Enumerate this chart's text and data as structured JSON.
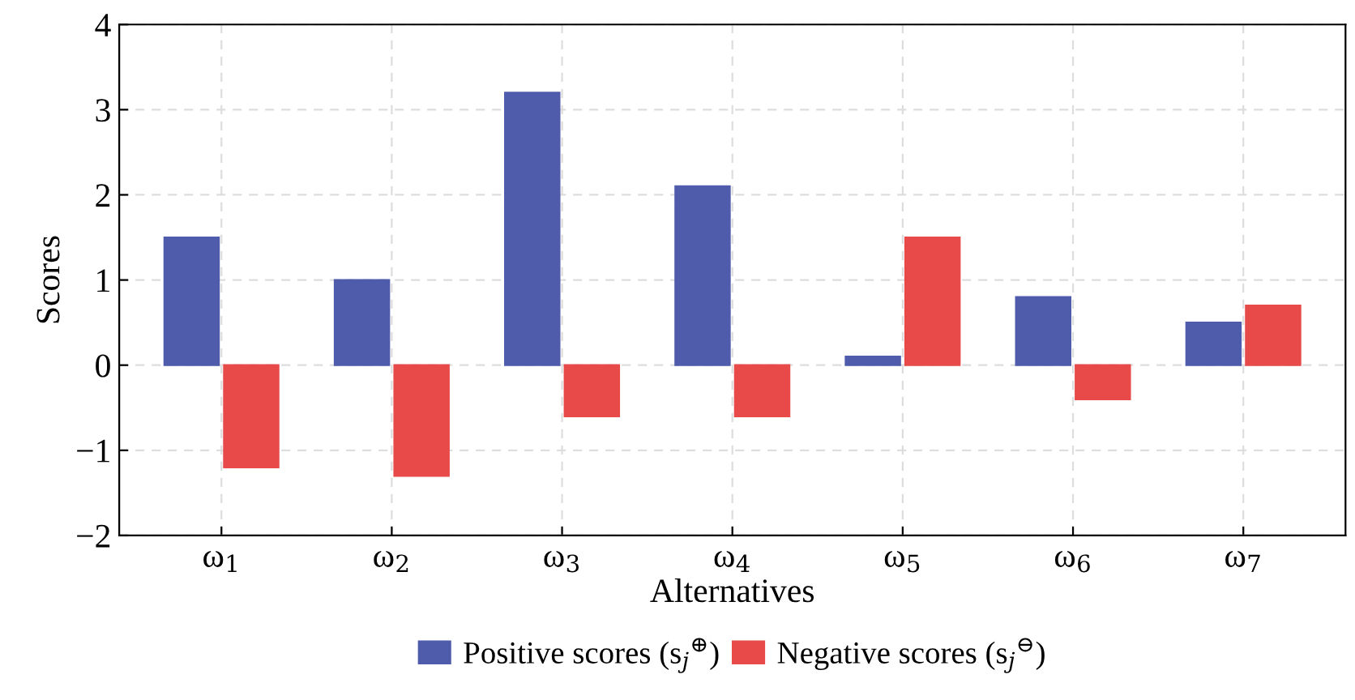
{
  "chart_data": {
    "type": "bar",
    "xlabel": "Alternatives",
    "ylabel": "Scores",
    "categories": [
      "ω$_{1}$",
      "ω$_{2}$",
      "ω$_{3}$",
      "ω$_{4}$",
      "ω$_{5}$",
      "ω$_{6}$",
      "ω$_{7}$"
    ],
    "series": [
      {
        "name": "Positive scores (s$_{j}$$^{⊕}$)",
        "color": "#4f5bab",
        "values": [
          1.5,
          1.0,
          3.2,
          2.1,
          0.1,
          0.8,
          0.5
        ]
      },
      {
        "name": "Negative scores (s$_{j}$$^{⊖}$)",
        "color": "#e84a4a",
        "values": [
          -1.2,
          -1.3,
          -0.6,
          -0.6,
          1.5,
          -0.4,
          0.7
        ]
      }
    ],
    "ylim": [
      -2,
      4
    ],
    "yticks": [
      {
        "value": -2,
        "label": "−2"
      },
      {
        "value": -1,
        "label": "−1"
      },
      0,
      1,
      2,
      3,
      4
    ],
    "grid": true,
    "legend": "bottom"
  }
}
